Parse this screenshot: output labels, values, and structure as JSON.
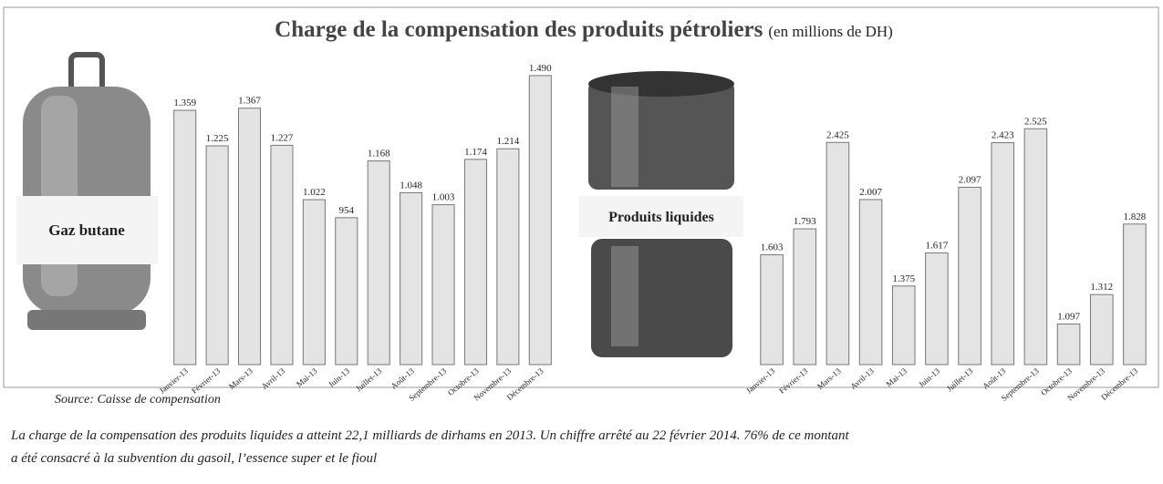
{
  "title": "Charge de la compensation des produits pétroliers",
  "subtitle": "(en millions de DH)",
  "source": "Source: Caisse de compensation",
  "caption": [
    "La charge de la compensation des produits liquides a atteint 22,1 milliards de dirhams en 2013. Un chiffre arrêté au 22 février 2014. 76% de ce montant",
    "a été consacré à la subvention du gasoil, l’essence super et le fioul"
  ],
  "chart_data": [
    {
      "type": "bar",
      "label": "Gaz butane",
      "color": "#e4e4e4",
      "categories": [
        "Janvier-13",
        "Février-13",
        "Mars-13",
        "Avril-13",
        "Mai-13",
        "Juin-13",
        "Juillet-13",
        "Août-13",
        "Septembre-13",
        "Octobre-13",
        "Novembre-13",
        "Décembre-13"
      ],
      "values": [
        1359,
        1225,
        1367,
        1227,
        1022,
        954,
        1168,
        1048,
        1003,
        1174,
        1214,
        1490
      ],
      "value_labels": [
        "1.359",
        "1.225",
        "1.367",
        "1.227",
        "1.022",
        "954",
        "1.168",
        "1.048",
        "1.003",
        "1.174",
        "1.214",
        "1.490"
      ],
      "ylim": [
        400,
        1500
      ]
    },
    {
      "type": "bar",
      "label": "Produits liquides",
      "color": "#e4e4e4",
      "categories": [
        "Janvier-13",
        "Février-13",
        "Mars-13",
        "Avril-13",
        "Mai-13",
        "Juin-13",
        "Juillet-13",
        "Août-13",
        "Septembre-13",
        "Octobre-13",
        "Novembre-13",
        "Décembre-13"
      ],
      "values": [
        1603,
        1793,
        2425,
        2007,
        1375,
        1617,
        2097,
        2423,
        2525,
        1097,
        1312,
        1828
      ],
      "value_labels": [
        "1.603",
        "1.793",
        "2.425",
        "2.007",
        "1.375",
        "1.617",
        "2.097",
        "2.423",
        "2.525",
        "1.097",
        "1.312",
        "1.828"
      ],
      "ylim": [
        800,
        2600
      ]
    }
  ]
}
